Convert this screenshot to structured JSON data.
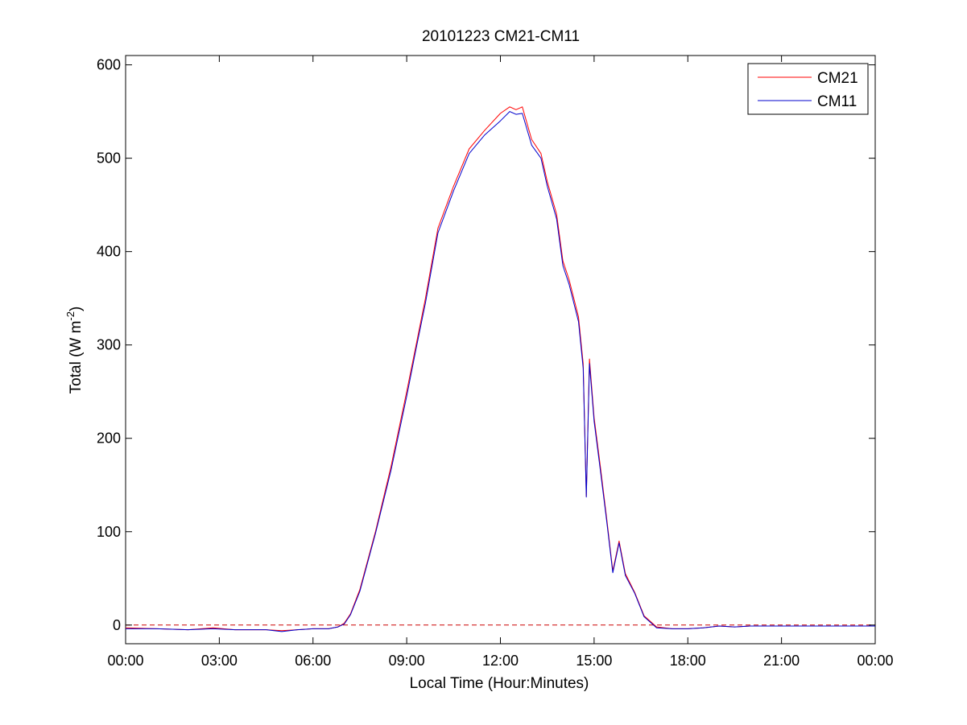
{
  "chart_data": {
    "type": "line",
    "title": "20101223 CM21-CM11",
    "xlabel": "Local Time (Hour:Minutes)",
    "ylabel": {
      "base": "Total (W m",
      "superscript": "-2",
      "suffix": ")"
    },
    "xlim": [
      0,
      24
    ],
    "ylim": [
      -20,
      610
    ],
    "x_ticks": [
      {
        "value": 0,
        "label": "00:00"
      },
      {
        "value": 3,
        "label": "03:00"
      },
      {
        "value": 6,
        "label": "06:00"
      },
      {
        "value": 9,
        "label": "09:00"
      },
      {
        "value": 12,
        "label": "12:00"
      },
      {
        "value": 15,
        "label": "15:00"
      },
      {
        "value": 18,
        "label": "18:00"
      },
      {
        "value": 21,
        "label": "21:00"
      },
      {
        "value": 24,
        "label": "00:00"
      }
    ],
    "y_ticks": [
      {
        "value": 0,
        "label": "0"
      },
      {
        "value": 100,
        "label": "100"
      },
      {
        "value": 200,
        "label": "200"
      },
      {
        "value": 300,
        "label": "300"
      },
      {
        "value": 400,
        "label": "400"
      },
      {
        "value": 500,
        "label": "500"
      },
      {
        "value": 600,
        "label": "600"
      }
    ],
    "grid": false,
    "legend_position": "top-right",
    "reference_line": {
      "y": 0,
      "style": "dashed",
      "color": "#cc0000"
    },
    "series": [
      {
        "name": "CM21",
        "color": "#ff0000",
        "x": [
          0,
          1,
          2,
          2.8,
          3.5,
          4.5,
          5,
          5.5,
          6,
          6.5,
          6.8,
          7,
          7.2,
          7.5,
          8,
          8.5,
          9,
          9.3,
          9.6,
          10,
          10.5,
          11,
          11.5,
          12,
          12.3,
          12.5,
          12.7,
          13,
          13.3,
          13.5,
          13.8,
          14,
          14.2,
          14.5,
          14.65,
          14.75,
          14.85,
          15,
          15.2,
          15.4,
          15.6,
          15.8,
          16,
          16.3,
          16.6,
          17,
          17.5,
          18,
          18.5,
          19,
          19.5,
          20,
          21,
          22,
          23,
          24
        ],
        "y": [
          -3,
          -4,
          -5,
          -3,
          -5,
          -5,
          -6,
          -5,
          -4,
          -4,
          -2,
          2,
          12,
          38,
          100,
          170,
          250,
          300,
          350,
          425,
          470,
          510,
          530,
          548,
          555,
          552,
          555,
          520,
          505,
          475,
          440,
          390,
          370,
          330,
          280,
          138,
          285,
          222,
          170,
          115,
          58,
          90,
          55,
          35,
          10,
          -2,
          -4,
          -4,
          -3,
          -1,
          -2,
          -1,
          -1,
          -1,
          -1,
          -1
        ]
      },
      {
        "name": "CM11",
        "color": "#0000cc",
        "x": [
          0,
          1,
          2,
          2.8,
          3.5,
          4.5,
          5,
          5.5,
          6,
          6.5,
          6.8,
          7,
          7.2,
          7.5,
          8,
          8.5,
          9,
          9.3,
          9.6,
          10,
          10.5,
          11,
          11.5,
          12,
          12.3,
          12.5,
          12.7,
          13,
          13.3,
          13.5,
          13.8,
          14,
          14.2,
          14.5,
          14.65,
          14.75,
          14.85,
          15,
          15.2,
          15.4,
          15.6,
          15.8,
          16,
          16.3,
          16.6,
          17,
          17.5,
          18,
          18.5,
          19,
          19.5,
          20,
          21,
          22,
          23,
          24
        ],
        "y": [
          -4,
          -4,
          -5,
          -4,
          -5,
          -5,
          -7,
          -5,
          -4,
          -4,
          -2,
          1,
          11,
          36,
          98,
          166,
          245,
          296,
          345,
          420,
          465,
          505,
          525,
          540,
          550,
          547,
          548,
          514,
          500,
          470,
          435,
          385,
          365,
          325,
          275,
          137,
          280,
          218,
          166,
          112,
          56,
          88,
          53,
          34,
          9,
          -3,
          -4,
          -4,
          -3,
          -1,
          -2,
          -1,
          -1,
          -1,
          -1,
          -1
        ]
      }
    ]
  }
}
